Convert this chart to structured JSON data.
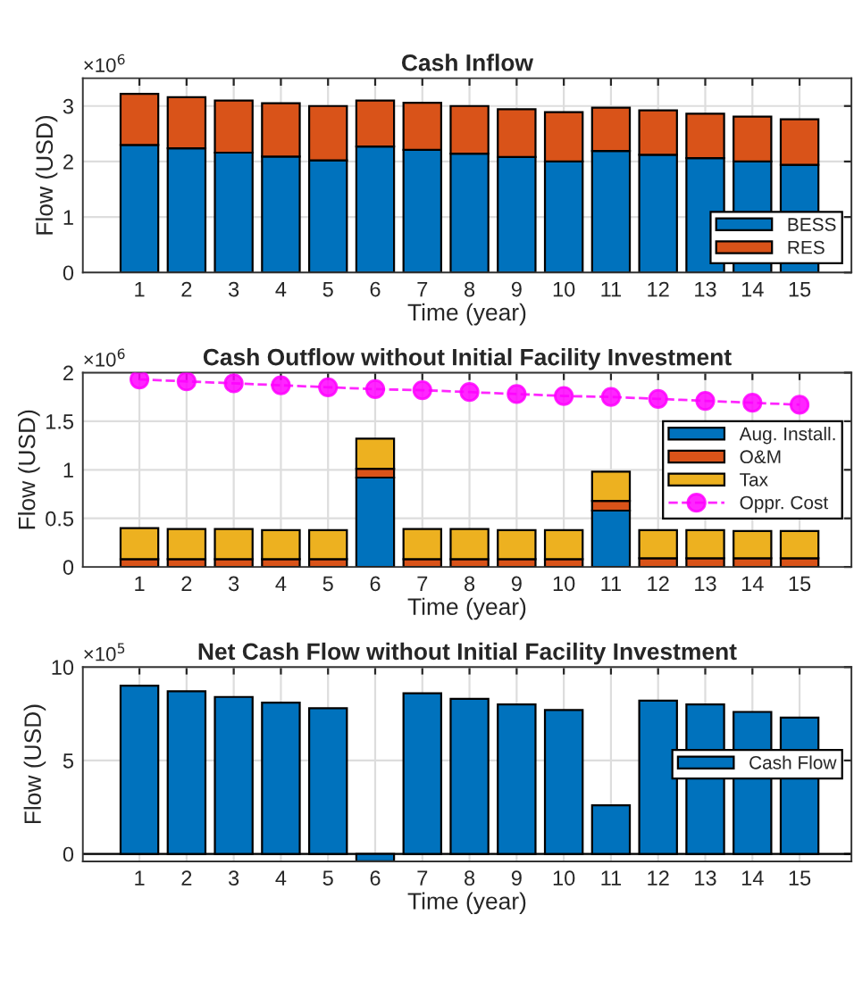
{
  "chart_data": [
    {
      "type": "bar",
      "title": "Cash Inflow",
      "xlabel": "Time (year)",
      "ylabel": "Flow (USD)",
      "annotations": [
        "×10$^{6}$"
      ],
      "stacked": true,
      "categories": [
        "1",
        "2",
        "3",
        "4",
        "5",
        "6",
        "7",
        "8",
        "9",
        "10",
        "11",
        "12",
        "13",
        "14",
        "15"
      ],
      "series": [
        {
          "name": "BESS",
          "color": "#0072bd",
          "values": [
            2.3,
            2.24,
            2.16,
            2.09,
            2.02,
            2.27,
            2.21,
            2.14,
            2.08,
            2.0,
            2.19,
            2.12,
            2.06,
            2.0,
            1.94
          ]
        },
        {
          "name": "RES",
          "color": "#d95319",
          "values": [
            0.92,
            0.92,
            0.94,
            0.96,
            0.98,
            0.83,
            0.85,
            0.86,
            0.86,
            0.89,
            0.78,
            0.8,
            0.8,
            0.81,
            0.82
          ]
        }
      ],
      "ylim": [
        0,
        3.5
      ],
      "yticks": [
        0,
        1,
        2,
        3
      ],
      "grid": true,
      "legend": "lower right"
    },
    {
      "type": "bar",
      "title": "Cash Outflow without Initial Facility Investment",
      "xlabel": "Time (year)",
      "ylabel": "Flow (USD)",
      "annotations": [
        "×10$^{6}$"
      ],
      "stacked": true,
      "categories": [
        "1",
        "2",
        "3",
        "4",
        "5",
        "6",
        "7",
        "8",
        "9",
        "10",
        "11",
        "12",
        "13",
        "14",
        "15"
      ],
      "series": [
        {
          "name": "Aug. Install.",
          "color": "#0072bd",
          "values": [
            0,
            0,
            0,
            0,
            0,
            0.92,
            0,
            0,
            0,
            0,
            0.58,
            0,
            0,
            0,
            0
          ]
        },
        {
          "name": "O&M",
          "color": "#d95319",
          "values": [
            0.08,
            0.08,
            0.08,
            0.08,
            0.08,
            0.09,
            0.08,
            0.08,
            0.08,
            0.08,
            0.1,
            0.09,
            0.09,
            0.09,
            0.09
          ]
        },
        {
          "name": "Tax",
          "color": "#edb120",
          "values": [
            0.32,
            0.31,
            0.31,
            0.3,
            0.3,
            0.31,
            0.31,
            0.31,
            0.3,
            0.3,
            0.3,
            0.29,
            0.29,
            0.28,
            0.28
          ]
        },
        {
          "name": "Oppr. Cost",
          "type": "line",
          "color": "#ff00ff",
          "marker": "circle",
          "line_style": "dashed",
          "values": [
            1.93,
            1.91,
            1.89,
            1.87,
            1.85,
            1.83,
            1.82,
            1.8,
            1.78,
            1.76,
            1.75,
            1.73,
            1.71,
            1.69,
            1.67
          ]
        }
      ],
      "ylim": [
        0,
        2
      ],
      "yticks": [
        0,
        0.5,
        1,
        1.5,
        2
      ],
      "grid": true,
      "legend": "right"
    },
    {
      "type": "bar",
      "title": "Net Cash Flow without Initial Facility Investment",
      "xlabel": "Time (year)",
      "ylabel": "Flow (USD)",
      "annotations": [
        "×10$^{5}$"
      ],
      "categories": [
        "1",
        "2",
        "3",
        "4",
        "5",
        "6",
        "7",
        "8",
        "9",
        "10",
        "11",
        "12",
        "13",
        "14",
        "15"
      ],
      "series": [
        {
          "name": "Cash Flow",
          "color": "#0072bd",
          "values": [
            9.0,
            8.7,
            8.4,
            8.1,
            7.8,
            -0.4,
            8.6,
            8.3,
            8.0,
            7.7,
            2.6,
            8.2,
            8.0,
            7.6,
            7.3
          ]
        }
      ],
      "ylim": [
        -0.4,
        10
      ],
      "yticks": [
        0,
        5,
        10
      ],
      "grid": true,
      "legend": "right"
    }
  ]
}
